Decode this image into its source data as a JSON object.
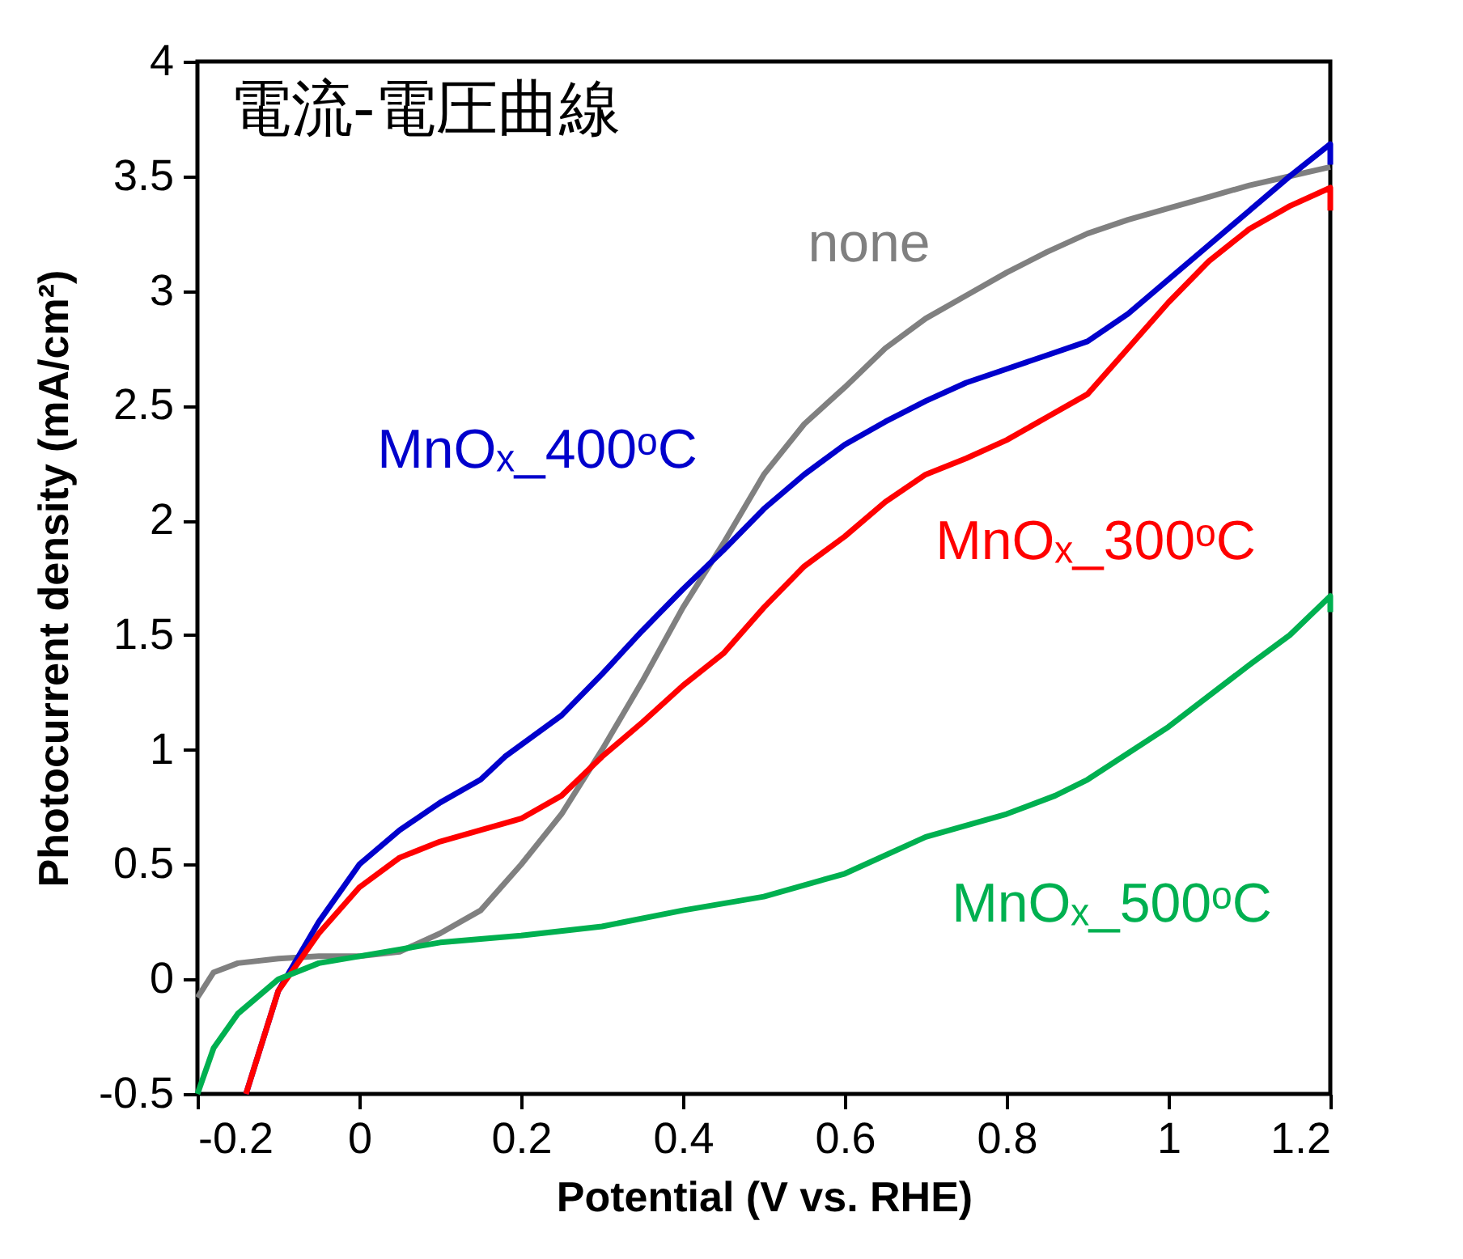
{
  "chart_data": {
    "type": "line",
    "title": "電流-電圧曲線",
    "xlabel": "Potential (V vs. RHE)",
    "ylabel": "Photocurrent density (mA/cm²)",
    "xlim": [
      -0.2,
      1.2
    ],
    "xticks": [
      -0.2,
      0,
      0.2,
      0.4,
      0.6,
      0.8,
      1,
      1.2
    ],
    "ylim": [
      -0.5,
      4
    ],
    "yticks": [
      -0.5,
      0,
      0.5,
      1,
      1.5,
      2,
      2.5,
      3,
      3.5,
      4
    ],
    "marker": "none",
    "line_style": "solid",
    "series": [
      {
        "name": "none",
        "color": "#808080",
        "x": [
          -0.2,
          -0.18,
          -0.15,
          -0.1,
          -0.05,
          0,
          0.05,
          0.1,
          0.15,
          0.18,
          0.2,
          0.25,
          0.3,
          0.35,
          0.4,
          0.45,
          0.5,
          0.55,
          0.6,
          0.65,
          0.7,
          0.75,
          0.8,
          0.85,
          0.9,
          0.95,
          1,
          1.05,
          1.1,
          1.15,
          1.2
        ],
        "values": [
          -0.08,
          0.03,
          0.07,
          0.09,
          0.1,
          0.1,
          0.12,
          0.2,
          0.3,
          0.42,
          0.5,
          0.72,
          1.0,
          1.3,
          1.62,
          1.9,
          2.2,
          2.42,
          2.58,
          2.75,
          2.88,
          2.98,
          3.08,
          3.17,
          3.25,
          3.31,
          3.36,
          3.41,
          3.46,
          3.5,
          3.54
        ]
      },
      {
        "name": "MnOₓ_400ᵒC",
        "color": "#0000cc",
        "x": [
          -0.14,
          -0.1,
          -0.05,
          0,
          0.05,
          0.1,
          0.15,
          0.18,
          0.25,
          0.3,
          0.35,
          0.4,
          0.45,
          0.5,
          0.55,
          0.6,
          0.65,
          0.7,
          0.75,
          0.8,
          0.85,
          0.9,
          0.95,
          1,
          1.05,
          1.1,
          1.15,
          1.2,
          1.2
        ],
        "values": [
          -0.5,
          -0.05,
          0.25,
          0.5,
          0.65,
          0.77,
          0.87,
          0.97,
          1.15,
          1.33,
          1.52,
          1.7,
          1.87,
          2.05,
          2.2,
          2.33,
          2.43,
          2.52,
          2.6,
          2.66,
          2.72,
          2.78,
          2.9,
          3.05,
          3.2,
          3.35,
          3.5,
          3.64,
          3.55
        ]
      },
      {
        "name": "MnOₓ_300ᵒC",
        "color": "#ff0000",
        "x": [
          -0.14,
          -0.1,
          -0.05,
          0,
          0.05,
          0.1,
          0.15,
          0.2,
          0.25,
          0.3,
          0.35,
          0.4,
          0.45,
          0.5,
          0.55,
          0.6,
          0.65,
          0.7,
          0.75,
          0.8,
          0.85,
          0.9,
          0.95,
          1,
          1.05,
          1.1,
          1.15,
          1.2,
          1.2
        ],
        "values": [
          -0.5,
          -0.05,
          0.2,
          0.4,
          0.53,
          0.6,
          0.65,
          0.7,
          0.8,
          0.97,
          1.12,
          1.28,
          1.42,
          1.62,
          1.8,
          1.93,
          2.08,
          2.2,
          2.27,
          2.35,
          2.45,
          2.55,
          2.75,
          2.95,
          3.13,
          3.27,
          3.37,
          3.45,
          3.35
        ]
      },
      {
        "name": "MnOₓ_500ᵒC",
        "color": "#00b050",
        "x": [
          -0.2,
          -0.18,
          -0.15,
          -0.1,
          -0.05,
          0,
          0.05,
          0.1,
          0.2,
          0.3,
          0.4,
          0.5,
          0.6,
          0.7,
          0.8,
          0.86,
          0.9,
          1,
          1.1,
          1.15,
          1.2,
          1.2
        ],
        "values": [
          -0.5,
          -0.3,
          -0.15,
          0.0,
          0.07,
          0.1,
          0.13,
          0.16,
          0.19,
          0.23,
          0.3,
          0.36,
          0.46,
          0.62,
          0.72,
          0.8,
          0.87,
          1.1,
          1.37,
          1.5,
          1.67,
          1.6
        ]
      }
    ]
  }
}
